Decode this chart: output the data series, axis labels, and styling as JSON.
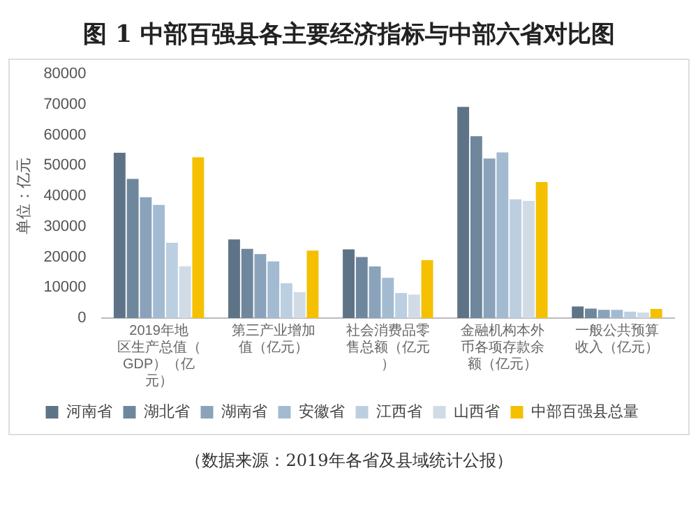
{
  "chart_data": {
    "type": "bar",
    "title": "图 1  中部百强县各主要经济指标与中部六省对比图",
    "ylabel": "单位：亿元",
    "categories": [
      "2019年地区生产总值（GDP）（亿元）",
      "第三产业增加值（亿元）",
      "社会消费品零售总额（亿元）",
      "金融机构本外币各项存款余额（亿元）",
      "一般公共预算收入（亿元）"
    ],
    "series": [
      {
        "name": "河南省",
        "color": "#5f7387",
        "values": [
          54200,
          25800,
          22500,
          69200,
          3800
        ]
      },
      {
        "name": "湖北省",
        "color": "#6f879d",
        "values": [
          45600,
          22700,
          20000,
          59600,
          3100
        ]
      },
      {
        "name": "湖南省",
        "color": "#8aa3bb",
        "values": [
          39600,
          21000,
          16900,
          52300,
          2700
        ]
      },
      {
        "name": "安徽省",
        "color": "#a3bbd1",
        "values": [
          37100,
          18600,
          13200,
          54300,
          2700
        ]
      },
      {
        "name": "江西省",
        "color": "#bccfe0",
        "values": [
          24700,
          11400,
          8200,
          38900,
          2100
        ]
      },
      {
        "name": "山西省",
        "color": "#d0dbe6",
        "values": [
          17000,
          8500,
          7700,
          38400,
          1800
        ]
      },
      {
        "name": "中部百强县总量",
        "color": "#f5c000",
        "values": [
          52700,
          22100,
          19000,
          44600,
          3000
        ]
      }
    ],
    "ylim": [
      0,
      80000
    ],
    "yticks": [
      0,
      10000,
      20000,
      30000,
      40000,
      50000,
      60000,
      70000,
      80000
    ],
    "grid": false,
    "legend": "bottom",
    "annotations": [
      "（数据来源：2019年各省及县域统计公报）"
    ]
  }
}
